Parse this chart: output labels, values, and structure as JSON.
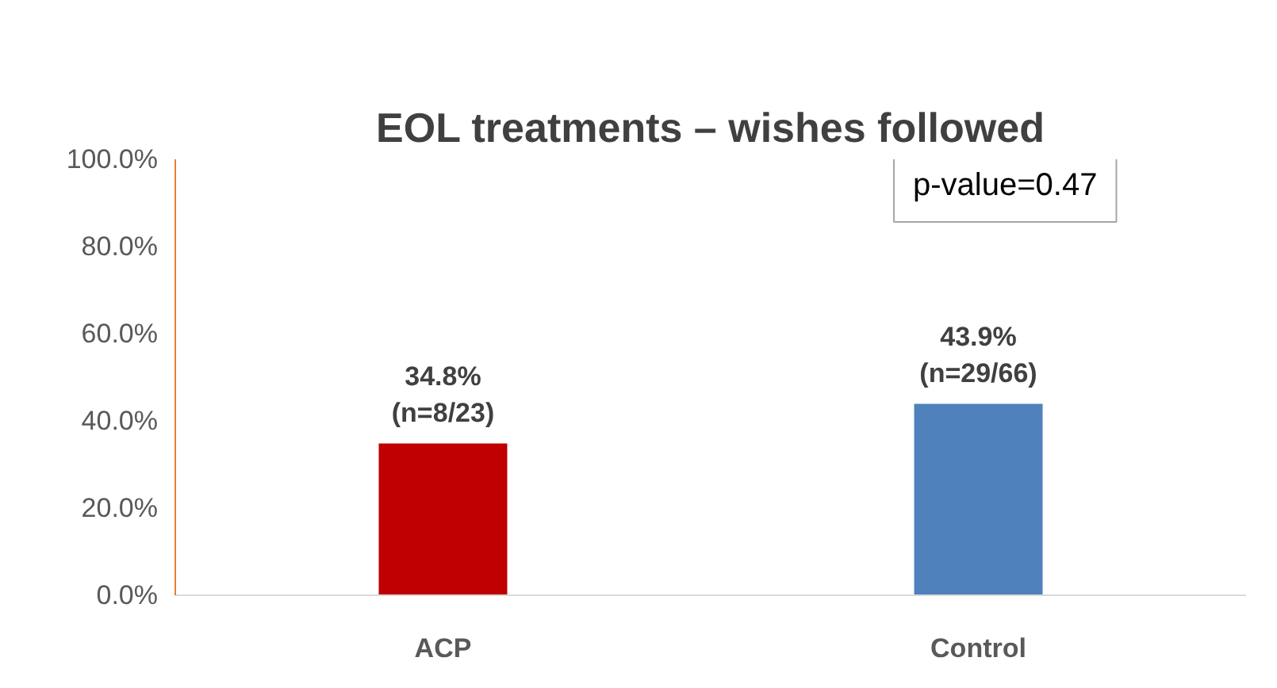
{
  "chart_data": {
    "type": "bar",
    "title": "EOL treatments – wishes followed",
    "categories": [
      "ACP",
      "Control"
    ],
    "values": [
      34.8,
      43.9
    ],
    "colors": [
      "#c00000",
      "#4f81bd"
    ],
    "value_labels": [
      "34.8%\n(n=8/23)",
      "43.9%\n(n=29/66)"
    ],
    "ylim": [
      0,
      100
    ],
    "yticks": [
      {
        "value": 0,
        "label": "0.0%"
      },
      {
        "value": 20,
        "label": "20.0%"
      },
      {
        "value": 40,
        "label": "40.0%"
      },
      {
        "value": 60,
        "label": "60.0%"
      },
      {
        "value": 80,
        "label": "80.0%"
      },
      {
        "value": 100,
        "label": "100.0%"
      }
    ],
    "grid": false,
    "annotations": [
      "p-value=0.47"
    ]
  }
}
